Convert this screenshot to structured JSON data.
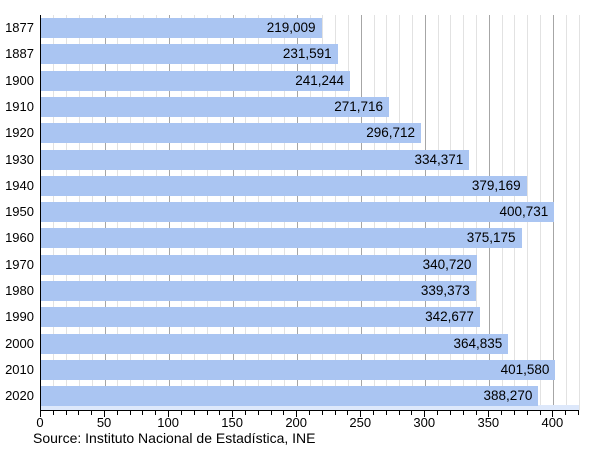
{
  "chart_data": {
    "type": "bar",
    "orientation": "horizontal",
    "title": "",
    "xlabel": "",
    "ylabel": "",
    "categories": [
      "1877",
      "1887",
      "1900",
      "1910",
      "1920",
      "1930",
      "1940",
      "1950",
      "1960",
      "1970",
      "1980",
      "1990",
      "2000",
      "2010",
      "2020"
    ],
    "values": [
      219009,
      231591,
      241244,
      271716,
      296712,
      334371,
      379169,
      400731,
      375175,
      340720,
      339373,
      342677,
      364835,
      401580,
      388270
    ],
    "value_labels": [
      "219,009",
      "231,591",
      "241,244",
      "271,716",
      "296,712",
      "334,371",
      "379,169",
      "400,731",
      "375,175",
      "340,720",
      "339,373",
      "342,677",
      "364,835",
      "401,580",
      "388,270"
    ],
    "x_tick_labels": [
      "0",
      "50",
      "100",
      "150",
      "200",
      "250",
      "300",
      "350",
      "400"
    ],
    "x_ticks_major": [
      0,
      50,
      100,
      150,
      200,
      250,
      300,
      350,
      400
    ],
    "x_major_step": 50,
    "x_minor_step": 10,
    "xlim": [
      0,
      420
    ],
    "unit_divisor": 1000,
    "grid": "on",
    "legend": "none"
  },
  "source_note": "Source: Instituto Nacional de Estadística, INE",
  "colors": {
    "bar": "#aac5f2",
    "grid_minor": "#e2e2e2",
    "grid_major": "#a6a6a6",
    "axis": "#000000",
    "baseline_strip": "#dde8fb",
    "background": "#ffffff",
    "text": "#000000"
  }
}
